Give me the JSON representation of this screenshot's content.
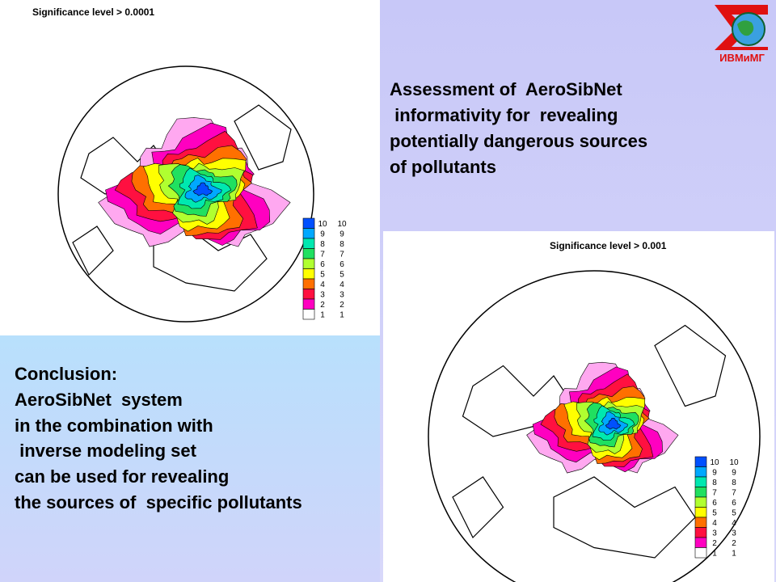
{
  "map1": {
    "label": "Significance level > 0.0001"
  },
  "map2": {
    "label": "Significance level > 0.001"
  },
  "legend": {
    "labels": [
      "10",
      "9",
      "8",
      "7",
      "6",
      "5",
      "4",
      "3",
      "2",
      "1"
    ],
    "colors": [
      "#0050ff",
      "#00a8ff",
      "#00e8b0",
      "#20e060",
      "#b0ff30",
      "#ffff00",
      "#ff7000",
      "#ff1040",
      "#ff00c0",
      "#ffa8f0"
    ]
  },
  "logo": {
    "text": "ИВМиМГ"
  },
  "title": {
    "lines": [
      "Assessment of  AeroSibNet",
      " informativity for  revealing",
      "potentially dangerous sources",
      "of pollutants"
    ]
  },
  "conclusion": {
    "lines": [
      "Conclusion:",
      "AeroSibNet  system",
      "in the combination with",
      " inverse modeling set",
      "can be used for revealing",
      "the sources of  specific pollutants"
    ]
  }
}
